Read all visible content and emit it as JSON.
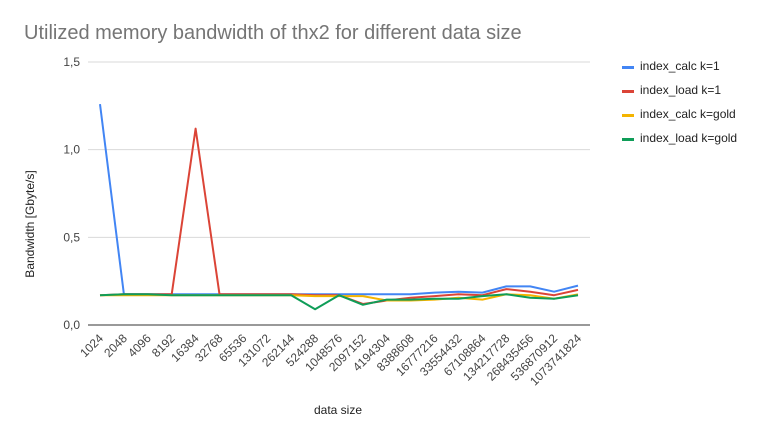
{
  "chart_data": {
    "type": "line",
    "title": "Utilized memory bandwidth of thx2 for different data size",
    "xlabel": "data size",
    "ylabel": "Bandwidth [Gbyte/s]",
    "ylim": [
      0,
      1.5
    ],
    "yticks": [
      "0,0",
      "0,5",
      "1,0",
      "1,5"
    ],
    "grid": true,
    "legend_position": "right",
    "categories": [
      "1024",
      "2048",
      "4096",
      "8192",
      "16384",
      "32768",
      "65536",
      "131072",
      "262144",
      "524288",
      "1048576",
      "2097152",
      "4194304",
      "8388608",
      "16777216",
      "33554432",
      "67108864",
      "134217728",
      "268435456",
      "536870912",
      "1073741824"
    ],
    "series": [
      {
        "name": "index_calc k=1",
        "color": "#4285F4",
        "values": [
          1.26,
          0.175,
          0.175,
          0.175,
          0.175,
          0.175,
          0.175,
          0.175,
          0.175,
          0.175,
          0.175,
          0.175,
          0.175,
          0.175,
          0.185,
          0.19,
          0.185,
          0.22,
          0.22,
          0.19,
          0.225
        ]
      },
      {
        "name": "index_load k=1",
        "color": "#DB4437",
        "values": [
          0.17,
          0.175,
          0.175,
          0.175,
          1.12,
          0.175,
          0.175,
          0.175,
          0.175,
          0.17,
          0.17,
          0.12,
          0.14,
          0.155,
          0.165,
          0.175,
          0.17,
          0.205,
          0.19,
          0.17,
          0.2
        ]
      },
      {
        "name": "index_calc k=gold",
        "color": "#F4B400",
        "values": [
          0.17,
          0.17,
          0.17,
          0.17,
          0.17,
          0.17,
          0.17,
          0.17,
          0.17,
          0.165,
          0.165,
          0.165,
          0.14,
          0.14,
          0.145,
          0.155,
          0.145,
          0.175,
          0.17,
          0.15,
          0.175
        ]
      },
      {
        "name": "index_load k=gold",
        "color": "#0F9D58",
        "values": [
          0.17,
          0.175,
          0.175,
          0.17,
          0.17,
          0.17,
          0.17,
          0.17,
          0.17,
          0.09,
          0.17,
          0.115,
          0.145,
          0.145,
          0.15,
          0.15,
          0.165,
          0.175,
          0.155,
          0.15,
          0.17
        ]
      }
    ]
  }
}
